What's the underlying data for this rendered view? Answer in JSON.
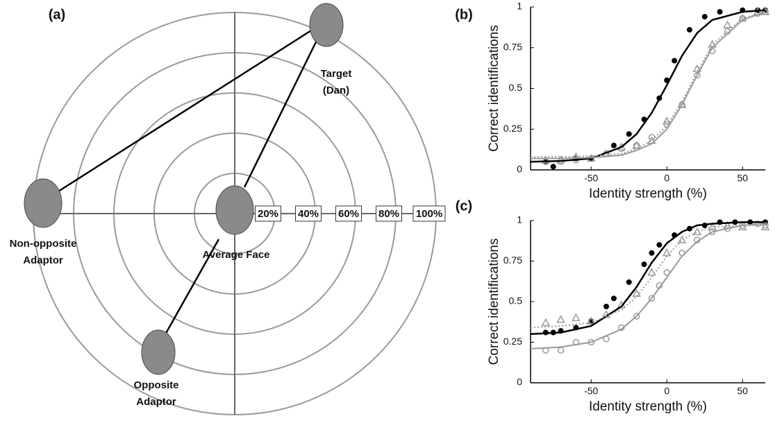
{
  "diagram": {
    "label": "(a)",
    "rings": [
      "20%",
      "40%",
      "60%",
      "80%",
      "100%"
    ],
    "nodes": [
      {
        "label": [
          "Target",
          "(Dan)"
        ]
      },
      {
        "label": [
          "Non-opposite",
          "Adaptor"
        ]
      },
      {
        "label": [
          "Average Face"
        ]
      },
      {
        "label": [
          "Opposite",
          "Adaptor"
        ]
      }
    ]
  },
  "chart_data": [
    {
      "type": "scatter",
      "label": "(b)",
      "xlabel": "Identity strength (%)",
      "ylabel": "Correct identifications",
      "xlim": [
        -90,
        65
      ],
      "xticks": [
        -50,
        0,
        50
      ],
      "ylim": [
        0,
        1
      ],
      "yticks": [
        0,
        0.25,
        0.5,
        0.75,
        1
      ],
      "series": [
        {
          "type": "scatter",
          "marker": "filled-circle",
          "color": "#000000",
          "x": [
            -80,
            -75,
            -60,
            -50,
            -35,
            -25,
            -15,
            -5,
            0,
            5,
            15,
            25,
            35,
            50,
            60,
            65
          ],
          "values": [
            0.05,
            0.02,
            0.07,
            0.07,
            0.15,
            0.22,
            0.31,
            0.44,
            0.55,
            0.67,
            0.86,
            0.94,
            0.97,
            0.98,
            0.98,
            0.98
          ]
        },
        {
          "type": "scatter",
          "marker": "open-triangle",
          "color": "#999999",
          "x": [
            -80,
            -70,
            -60,
            -50,
            -40,
            -30,
            -20,
            -10,
            0,
            10,
            20,
            30,
            40,
            50,
            60,
            65
          ],
          "values": [
            0.06,
            0.06,
            0.08,
            0.07,
            0.1,
            0.14,
            0.15,
            0.18,
            0.3,
            0.4,
            0.62,
            0.77,
            0.89,
            0.93,
            0.97,
            0.97
          ]
        },
        {
          "type": "scatter",
          "marker": "open-circle",
          "color": "#999999",
          "x": [
            -80,
            -70,
            -60,
            -50,
            -40,
            -30,
            -20,
            -10,
            0,
            10,
            20,
            30,
            40,
            50,
            60,
            65
          ],
          "values": [
            0.05,
            0.05,
            0.06,
            0.07,
            0.1,
            0.13,
            0.15,
            0.2,
            0.28,
            0.4,
            0.58,
            0.73,
            0.85,
            0.93,
            0.96,
            0.97
          ]
        },
        {
          "type": "line",
          "style": "solid",
          "color": "#000000",
          "x": [
            -90,
            -70,
            -50,
            -30,
            -20,
            -10,
            0,
            10,
            20,
            30,
            50,
            65
          ],
          "values": [
            0.05,
            0.055,
            0.07,
            0.14,
            0.22,
            0.35,
            0.52,
            0.7,
            0.84,
            0.92,
            0.97,
            0.98
          ]
        },
        {
          "type": "line",
          "style": "dotted",
          "color": "#999999",
          "x": [
            -90,
            -70,
            -50,
            -30,
            -20,
            -10,
            0,
            10,
            20,
            30,
            50,
            65
          ],
          "values": [
            0.08,
            0.08,
            0.085,
            0.1,
            0.13,
            0.18,
            0.27,
            0.42,
            0.6,
            0.77,
            0.93,
            0.97
          ]
        },
        {
          "type": "line",
          "style": "solid",
          "color": "#999999",
          "x": [
            -90,
            -70,
            -50,
            -30,
            -20,
            -10,
            0,
            10,
            20,
            30,
            50,
            65
          ],
          "values": [
            0.07,
            0.07,
            0.075,
            0.09,
            0.12,
            0.16,
            0.25,
            0.4,
            0.58,
            0.75,
            0.92,
            0.97
          ]
        }
      ]
    },
    {
      "type": "scatter",
      "label": "(c)",
      "xlabel": "Identity strength (%)",
      "ylabel": "Correct identifications",
      "xlim": [
        -90,
        65
      ],
      "xticks": [
        -50,
        0,
        50
      ],
      "ylim": [
        0,
        1
      ],
      "yticks": [
        0,
        0.25,
        0.5,
        0.75,
        1
      ],
      "series": [
        {
          "type": "scatter",
          "marker": "filled-circle",
          "color": "#000000",
          "x": [
            -80,
            -75,
            -70,
            -60,
            -50,
            -40,
            -35,
            -25,
            -15,
            -10,
            -5,
            5,
            15,
            25,
            35,
            45,
            55,
            65
          ],
          "values": [
            0.31,
            0.31,
            0.32,
            0.34,
            0.38,
            0.47,
            0.52,
            0.62,
            0.73,
            0.8,
            0.85,
            0.91,
            0.95,
            0.97,
            0.99,
            0.99,
            0.99,
            0.99
          ]
        },
        {
          "type": "scatter",
          "marker": "open-triangle",
          "color": "#999999",
          "x": [
            -80,
            -70,
            -60,
            -50,
            -40,
            -30,
            -20,
            -10,
            0,
            10,
            20,
            30,
            40,
            50,
            65
          ],
          "values": [
            0.37,
            0.39,
            0.4,
            0.38,
            0.42,
            0.48,
            0.55,
            0.68,
            0.8,
            0.88,
            0.93,
            0.96,
            0.97,
            0.96,
            0.96
          ]
        },
        {
          "type": "scatter",
          "marker": "open-circle",
          "color": "#999999",
          "x": [
            -80,
            -70,
            -60,
            -50,
            -40,
            -30,
            -20,
            -10,
            -5,
            0,
            10,
            20,
            30,
            40,
            50,
            60,
            65
          ],
          "values": [
            0.2,
            0.2,
            0.25,
            0.25,
            0.27,
            0.34,
            0.41,
            0.52,
            0.6,
            0.68,
            0.8,
            0.88,
            0.93,
            0.95,
            0.97,
            0.98,
            0.97
          ]
        },
        {
          "type": "line",
          "style": "solid",
          "color": "#000000",
          "x": [
            -90,
            -70,
            -50,
            -30,
            -20,
            -10,
            0,
            10,
            20,
            30,
            50,
            65
          ],
          "values": [
            0.3,
            0.31,
            0.35,
            0.47,
            0.59,
            0.74,
            0.86,
            0.93,
            0.97,
            0.98,
            0.99,
            0.99
          ]
        },
        {
          "type": "line",
          "style": "dotted",
          "color": "#999999",
          "x": [
            -90,
            -70,
            -50,
            -30,
            -20,
            -10,
            0,
            10,
            20,
            30,
            50,
            65
          ],
          "values": [
            0.34,
            0.35,
            0.37,
            0.45,
            0.53,
            0.65,
            0.78,
            0.88,
            0.93,
            0.96,
            0.97,
            0.97
          ]
        },
        {
          "type": "line",
          "style": "solid",
          "color": "#999999",
          "x": [
            -90,
            -70,
            -50,
            -30,
            -20,
            -10,
            0,
            10,
            20,
            30,
            50,
            65
          ],
          "values": [
            0.21,
            0.22,
            0.25,
            0.33,
            0.41,
            0.52,
            0.65,
            0.78,
            0.87,
            0.93,
            0.97,
            0.98
          ]
        }
      ]
    }
  ]
}
